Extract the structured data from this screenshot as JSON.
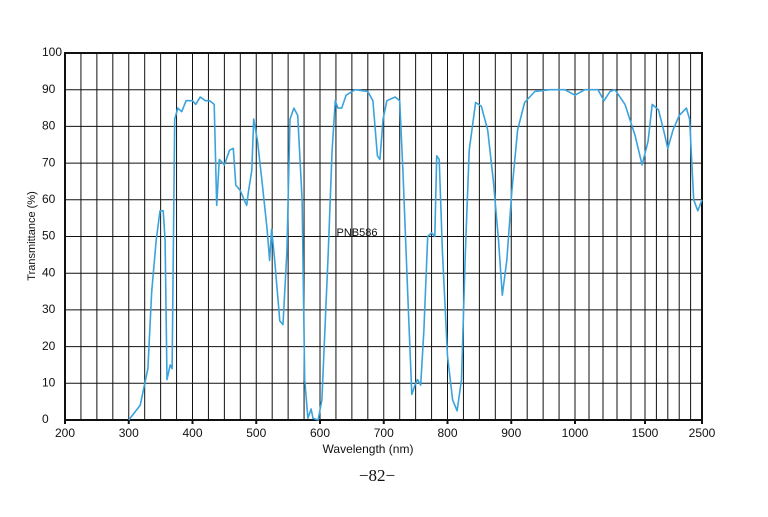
{
  "chart_data": {
    "type": "line",
    "x_label": "Wavelength (nm)",
    "y_label": "Transmittance (%)",
    "annotation": "PNB586",
    "footer": "−82−",
    "xlim": [
      200,
      2500
    ],
    "ylim": [
      0,
      100
    ],
    "xticks": [
      200,
      300,
      400,
      500,
      600,
      700,
      800,
      900,
      1000,
      1500,
      2500
    ],
    "x_grid": [
      200,
      225,
      250,
      275,
      300,
      325,
      350,
      375,
      400,
      425,
      450,
      475,
      500,
      525,
      550,
      575,
      600,
      625,
      650,
      675,
      700,
      725,
      750,
      775,
      800,
      825,
      850,
      875,
      900,
      925,
      950,
      975,
      1000,
      1100,
      1200,
      1300,
      1400,
      1500,
      1700,
      1900,
      2100,
      2300,
      2500
    ],
    "yticks": [
      0,
      10,
      20,
      30,
      40,
      50,
      60,
      70,
      80,
      90,
      100
    ],
    "grid": true,
    "series": [
      {
        "color": "#3ba3dc",
        "x": [
          300,
          318,
          330,
          336,
          343,
          349,
          354,
          357,
          360,
          365,
          368,
          372,
          377,
          383,
          390,
          400,
          405,
          412,
          420,
          427,
          434,
          438,
          442,
          450,
          458,
          464,
          468,
          475,
          481,
          485,
          488,
          493,
          496,
          502,
          509,
          517,
          521,
          524,
          529,
          537,
          542,
          548,
          553,
          559,
          565,
          572,
          576,
          581,
          586,
          589,
          597,
          603,
          613,
          619,
          624,
          628,
          634,
          641,
          655,
          675,
          683,
          690,
          694,
          699,
          705,
          718,
          725,
          730,
          738,
          744,
          749,
          753,
          758,
          763,
          769,
          775,
          780,
          783,
          787,
          792,
          800,
          808,
          815,
          822,
          828,
          834,
          844,
          853,
          863,
          872,
          880,
          886,
          893,
          901,
          910,
          921,
          937,
          961,
          984,
          1000,
          1071,
          1164,
          1207,
          1250,
          1286,
          1357,
          1429,
          1479,
          1555,
          1627,
          1736,
          1827,
          1900,
          1991,
          2100,
          2227,
          2282,
          2355,
          2427,
          2500
        ],
        "values": [
          0,
          4,
          14,
          35,
          49,
          57,
          57,
          49,
          11,
          15,
          14,
          82,
          85,
          84,
          87,
          87,
          86,
          88,
          87,
          87,
          86,
          58.5,
          71,
          69.5,
          73.5,
          74,
          64,
          62.5,
          60,
          58.5,
          62.5,
          68,
          82,
          76,
          65,
          52,
          43.5,
          52,
          43.5,
          27,
          26,
          46,
          82,
          85,
          83,
          60,
          11,
          0.5,
          3,
          0.5,
          0,
          5.5,
          46,
          73.5,
          87,
          85,
          85,
          88.5,
          90,
          89.5,
          87,
          72,
          71,
          82,
          87,
          88,
          87,
          68,
          32.5,
          7,
          9.5,
          11,
          9.5,
          24.5,
          50,
          51,
          50,
          72,
          71,
          46,
          17.5,
          5.5,
          2.5,
          11,
          46,
          73.5,
          86.5,
          85.5,
          79,
          65,
          49,
          34,
          43.5,
          62.5,
          79,
          86.5,
          89.5,
          90,
          90,
          88.5,
          90,
          90,
          87,
          89.5,
          90,
          86,
          77.5,
          69.5,
          76,
          86,
          84.5,
          79,
          74,
          79,
          83,
          85,
          82,
          60,
          57,
          60
        ]
      }
    ]
  }
}
